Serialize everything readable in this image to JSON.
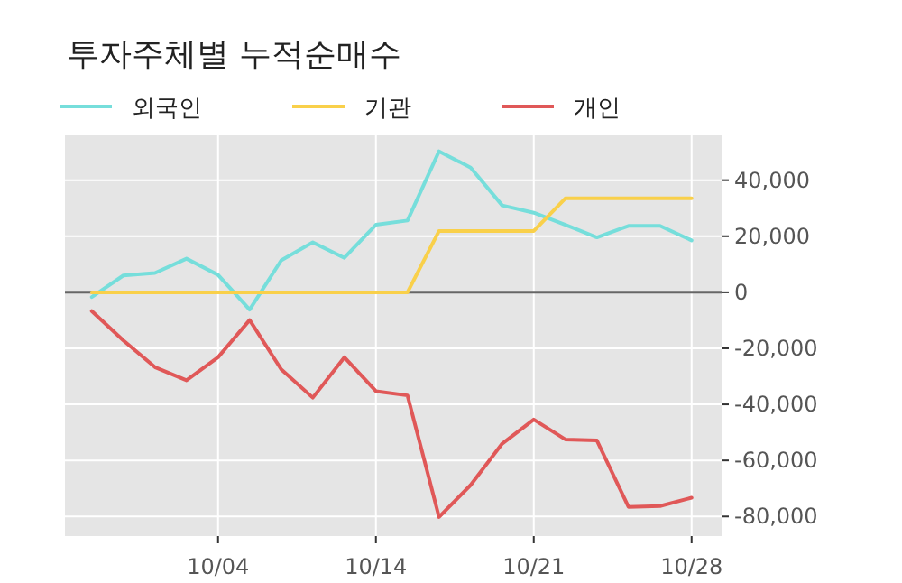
{
  "chart_data": {
    "type": "line",
    "title": "투자주체별 누적순매수",
    "categories": [
      null,
      null,
      null,
      null,
      "10/04",
      null,
      null,
      null,
      null,
      "10/14",
      null,
      null,
      null,
      null,
      "10/21",
      null,
      null,
      null,
      null,
      "10/28"
    ],
    "series": [
      {
        "name": "외국인",
        "color": "#76dedb",
        "values": [
          -1700,
          6000,
          6900,
          12000,
          6200,
          -6200,
          11400,
          17800,
          12300,
          24100,
          25600,
          50300,
          44500,
          31000,
          28400,
          24100,
          19600,
          23700,
          23700,
          18500
        ]
      },
      {
        "name": "기관",
        "color": "#f9d04a",
        "values": [
          0,
          0,
          0,
          0,
          0,
          0,
          0,
          0,
          0,
          0,
          0,
          21900,
          21900,
          21900,
          21900,
          33500,
          33500,
          33500,
          33500,
          33500
        ]
      },
      {
        "name": "개인",
        "color": "#e05858",
        "values": [
          -6700,
          -17200,
          -26700,
          -31400,
          -23200,
          -9900,
          -27500,
          -37600,
          -23200,
          -35300,
          -36800,
          -80200,
          -68800,
          -54000,
          -45400,
          -52500,
          -52900,
          -76600,
          -76300,
          -73300
        ]
      }
    ],
    "ylim": [
      -87000,
      56000
    ],
    "yticks": [
      {
        "value": -80000,
        "label": "-80,000"
      },
      {
        "value": -60000,
        "label": "-60,000"
      },
      {
        "value": -40000,
        "label": "-40,000"
      },
      {
        "value": -20000,
        "label": "-20,000"
      },
      0,
      {
        "value": 20000,
        "label": "20,000"
      },
      {
        "value": 40000,
        "label": "40,000"
      }
    ],
    "grid": true,
    "legend": "top left",
    "marker": "none",
    "line_style": "solid",
    "ref_lines": [
      {
        "axis": "y",
        "value": 0,
        "color": "#666666"
      }
    ]
  }
}
